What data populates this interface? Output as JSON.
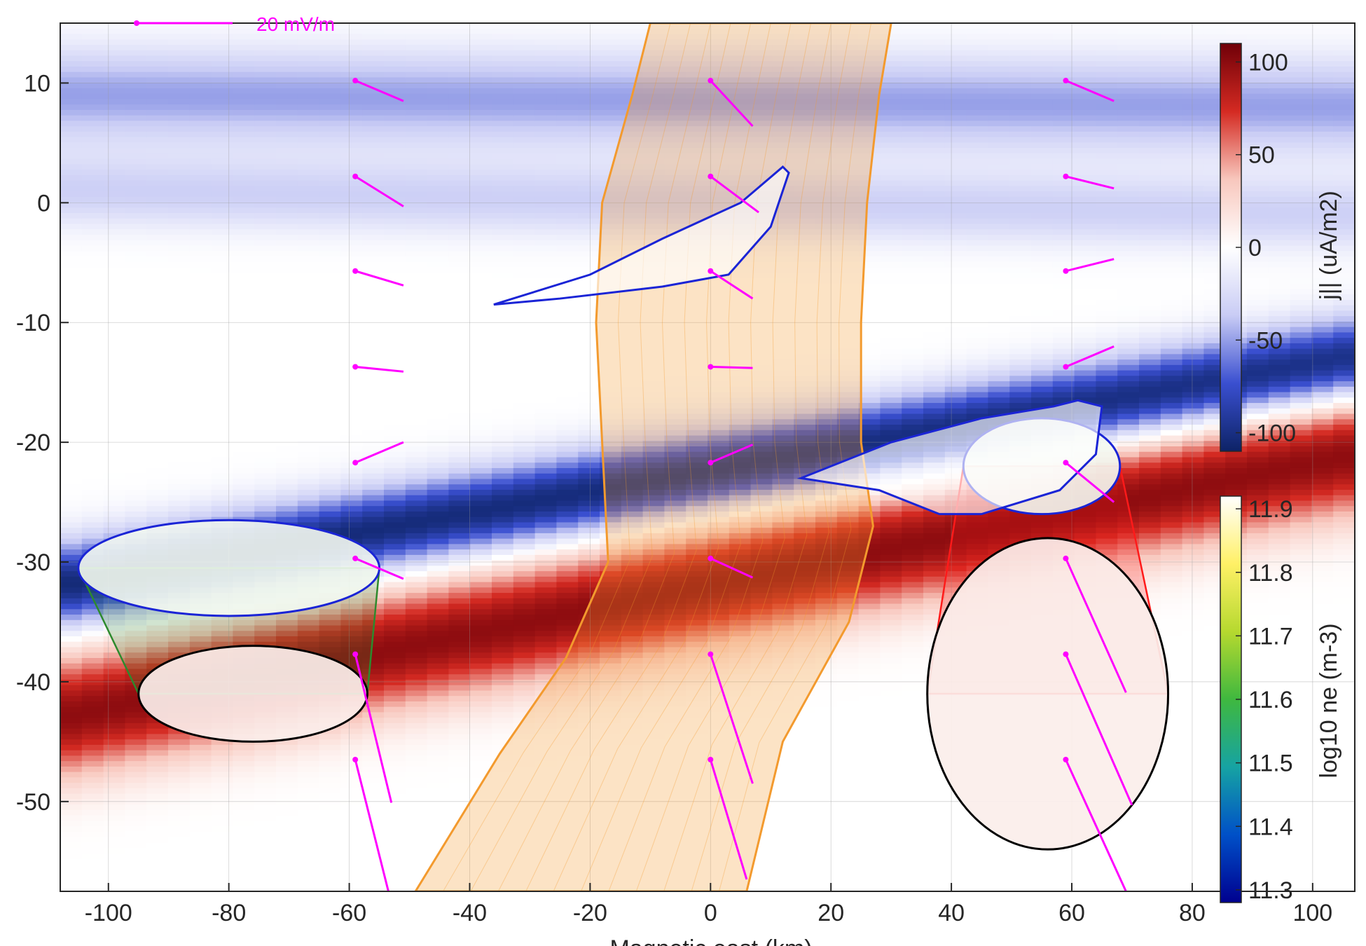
{
  "chart_data": {
    "type": "heatmap",
    "x_axis": {
      "label": "Magnetic east (km)",
      "lim": [
        -108,
        107
      ],
      "ticks": [
        -100,
        -80,
        -60,
        -40,
        -20,
        0,
        20,
        40,
        60,
        80,
        100
      ]
    },
    "y_axis": {
      "label": "",
      "lim": [
        -57.5,
        15
      ],
      "ticks": [
        10,
        0,
        -10,
        -20,
        -30,
        -40,
        -50
      ]
    },
    "grid": true,
    "background_field": {
      "name": "j_||",
      "colorbar_label": "j|| (uA/m2)",
      "unit": "uA/m^2",
      "range": [
        -110,
        110
      ],
      "ticks": [
        100,
        50,
        0,
        -50,
        -100
      ],
      "colormap": [
        "#0d2366",
        "#3a4fd0",
        "#c9ccf5",
        "#ffffff",
        "#f8c7bd",
        "#d42a22",
        "#700008"
      ],
      "bands": [
        {
          "sign": -1,
          "strength": 0.45,
          "y_at_left": 9,
          "y_at_right": 8,
          "width": 4
        },
        {
          "sign": -1,
          "strength": 0.3,
          "y_at_left": 1,
          "y_at_right": -1,
          "width": 3
        },
        {
          "sign": -1,
          "strength": 0.95,
          "y_at_left": -32,
          "y_at_right": -13,
          "width": 3.5
        },
        {
          "sign": 1,
          "strength": 0.9,
          "y_at_left": -43,
          "y_at_right": -21,
          "width": 5
        }
      ]
    },
    "density_colorbar": {
      "label": "log10 ne (m-3)",
      "range": [
        11.28,
        11.92
      ],
      "ticks": [
        11.9,
        11.8,
        11.7,
        11.6,
        11.5,
        11.4,
        11.3
      ],
      "colormap": [
        "#00008f",
        "#0050c8",
        "#16a3a3",
        "#3fb83f",
        "#b6d92f",
        "#fff066",
        "#ffffff"
      ]
    },
    "flux_tubes": [
      {
        "name": "green tube",
        "edge_color": "#2d8a2d",
        "top_ellipse": {
          "cx": -80,
          "cy": -30.5,
          "rx": 25,
          "ry": 4
        },
        "bottom_ellipse": {
          "cx": -76,
          "cy": -41,
          "rx": 19,
          "ry": 4
        }
      },
      {
        "name": "orange tube",
        "edge_color": "#f39a2e",
        "left_edge": [
          [
            -10,
            15
          ],
          [
            -13,
            9
          ],
          [
            -18,
            0
          ],
          [
            -19,
            -10
          ],
          [
            -18,
            -20
          ],
          [
            -17,
            -30
          ],
          [
            -24,
            -38
          ],
          [
            -35,
            -46
          ],
          [
            -49,
            -57.5
          ]
        ],
        "right_edge": [
          [
            30,
            15
          ],
          [
            28,
            9
          ],
          [
            26,
            0
          ],
          [
            25,
            -10
          ],
          [
            25,
            -20
          ],
          [
            27,
            -27
          ],
          [
            23,
            -35
          ],
          [
            12,
            -45
          ],
          [
            6,
            -57.5
          ]
        ]
      },
      {
        "name": "red tube",
        "edge_color": "#ff1a1a",
        "top_ellipse": {
          "cx": 55,
          "cy": -22,
          "rx": 13,
          "ry": 4
        },
        "bottom_ellipse": {
          "cx": 56,
          "cy": -41,
          "rx": 20,
          "ry": 13
        }
      }
    ],
    "blue_outlines": [
      {
        "points": [
          [
            -36,
            -8.5
          ],
          [
            -20,
            -6
          ],
          [
            -8,
            -3
          ],
          [
            5,
            0
          ],
          [
            12,
            3
          ],
          [
            13,
            2.5
          ],
          [
            10,
            -2
          ],
          [
            3,
            -6
          ],
          [
            -8,
            -7
          ],
          [
            -25,
            -8
          ],
          [
            -36,
            -8.5
          ]
        ]
      },
      {
        "points": [
          [
            15,
            -23
          ],
          [
            30,
            -20
          ],
          [
            45,
            -18
          ],
          [
            57,
            -17
          ],
          [
            61,
            -16.5
          ],
          [
            65,
            -17
          ],
          [
            64,
            -21
          ],
          [
            58,
            -24
          ],
          [
            45,
            -26
          ],
          [
            38,
            -26
          ],
          [
            28,
            -24
          ],
          [
            15,
            -23
          ]
        ]
      }
    ],
    "electric_field_vectors": {
      "scale_label": "20 mV/m",
      "color": "#ff00ff",
      "vectors": [
        {
          "x": -59,
          "y": 10.2,
          "dx": 8,
          "dy": -1.7
        },
        {
          "x": -59,
          "y": 2.2,
          "dx": 8,
          "dy": -2.5
        },
        {
          "x": -59,
          "y": -5.7,
          "dx": 8,
          "dy": -1.2
        },
        {
          "x": -59,
          "y": -13.7,
          "dx": 8,
          "dy": -0.4
        },
        {
          "x": -59,
          "y": -21.7,
          "dx": 8,
          "dy": 1.7
        },
        {
          "x": -59,
          "y": -29.7,
          "dx": 8,
          "dy": -1.7
        },
        {
          "x": -59,
          "y": -37.7,
          "dx": 6,
          "dy": -12.4
        },
        {
          "x": -59,
          "y": -46.5,
          "dx": 6,
          "dy": -12
        },
        {
          "x": 0,
          "y": 10.2,
          "dx": 7,
          "dy": -3.8
        },
        {
          "x": 0,
          "y": 2.2,
          "dx": 8,
          "dy": -3
        },
        {
          "x": 0,
          "y": -5.7,
          "dx": 7,
          "dy": -2.3
        },
        {
          "x": 0,
          "y": -13.7,
          "dx": 7,
          "dy": -0.1
        },
        {
          "x": 0,
          "y": -21.7,
          "dx": 7,
          "dy": 1.5
        },
        {
          "x": 0,
          "y": -29.7,
          "dx": 7,
          "dy": -1.6
        },
        {
          "x": 0,
          "y": -37.7,
          "dx": 7,
          "dy": -10.8
        },
        {
          "x": 0,
          "y": -46.5,
          "dx": 6,
          "dy": -10
        },
        {
          "x": 59,
          "y": 10.2,
          "dx": 8,
          "dy": -1.7
        },
        {
          "x": 59,
          "y": 2.2,
          "dx": 8,
          "dy": -1
        },
        {
          "x": 59,
          "y": -5.7,
          "dx": 8,
          "dy": 1
        },
        {
          "x": 59,
          "y": -13.7,
          "dx": 8,
          "dy": 1.7
        },
        {
          "x": 59,
          "y": -21.7,
          "dx": 8,
          "dy": -3.3
        },
        {
          "x": 59,
          "y": -29.7,
          "dx": 10,
          "dy": -11.2
        },
        {
          "x": 59,
          "y": -37.7,
          "dx": 11,
          "dy": -12.6
        },
        {
          "x": 59,
          "y": -46.5,
          "dx": 10,
          "dy": -11
        }
      ]
    }
  }
}
